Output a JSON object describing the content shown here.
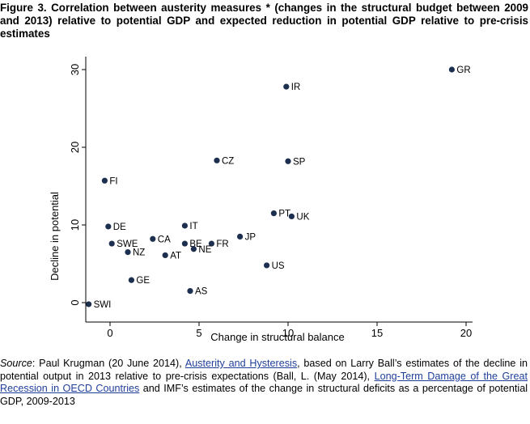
{
  "title": "Figure 3. Correlation between austerity measures * (changes in the structural budget between 2009 and 2013) relative to potential GDP and expected reduction in potential GDP relative to pre-crisis estimates",
  "chart_data": {
    "type": "scatter",
    "title": "",
    "xlabel": "Change in structural balance",
    "ylabel": "Decline in potential",
    "xlim": [
      -1.5,
      20.5
    ],
    "ylim": [
      -0.5,
      31
    ],
    "xticks": [
      0,
      5,
      10,
      15,
      20
    ],
    "yticks": [
      0,
      10,
      20,
      30
    ],
    "grid": false,
    "points": [
      {
        "label": "GR",
        "x": 19.2,
        "y": 30.0
      },
      {
        "label": "IR",
        "x": 9.9,
        "y": 27.8
      },
      {
        "label": "CZ",
        "x": 6.0,
        "y": 18.3
      },
      {
        "label": "SP",
        "x": 10.0,
        "y": 18.2
      },
      {
        "label": "FI",
        "x": -0.3,
        "y": 15.7
      },
      {
        "label": "PT",
        "x": 9.2,
        "y": 11.5
      },
      {
        "label": "UK",
        "x": 10.2,
        "y": 11.1
      },
      {
        "label": "DE",
        "x": -0.1,
        "y": 9.8
      },
      {
        "label": "IT",
        "x": 4.2,
        "y": 9.9
      },
      {
        "label": "JP",
        "x": 7.3,
        "y": 8.5
      },
      {
        "label": "CA",
        "x": 2.4,
        "y": 8.2
      },
      {
        "label": "SWE",
        "x": 0.1,
        "y": 7.6
      },
      {
        "label": "BE",
        "x": 4.2,
        "y": 7.6
      },
      {
        "label": "FR",
        "x": 5.7,
        "y": 7.6
      },
      {
        "label": "NE",
        "x": 4.7,
        "y": 6.9
      },
      {
        "label": "NZ",
        "x": 1.0,
        "y": 6.5
      },
      {
        "label": "AT",
        "x": 3.1,
        "y": 6.1
      },
      {
        "label": "US",
        "x": 8.8,
        "y": 4.8
      },
      {
        "label": "GE",
        "x": 1.2,
        "y": 2.9
      },
      {
        "label": "AS",
        "x": 4.5,
        "y": 1.5
      },
      {
        "label": "SWI",
        "x": -1.2,
        "y": -0.2
      }
    ]
  },
  "caption": {
    "source_label": "Source",
    "author": ": Paul Krugman (20 June 2014), ",
    "link1": "Austerity and Hysteresis",
    "text1": ", based on Larry Ball’s estimates of the decline in potential output in 2013 relative to pre-crisis expectations (Ball, L. (May 2014), ",
    "link2": "Long-Term Damage of the Great Recession in OECD Countries",
    "text2": " and IMF’s estimates of the change in structural deficits as a percentage of potential GDP, 2009-2013"
  }
}
